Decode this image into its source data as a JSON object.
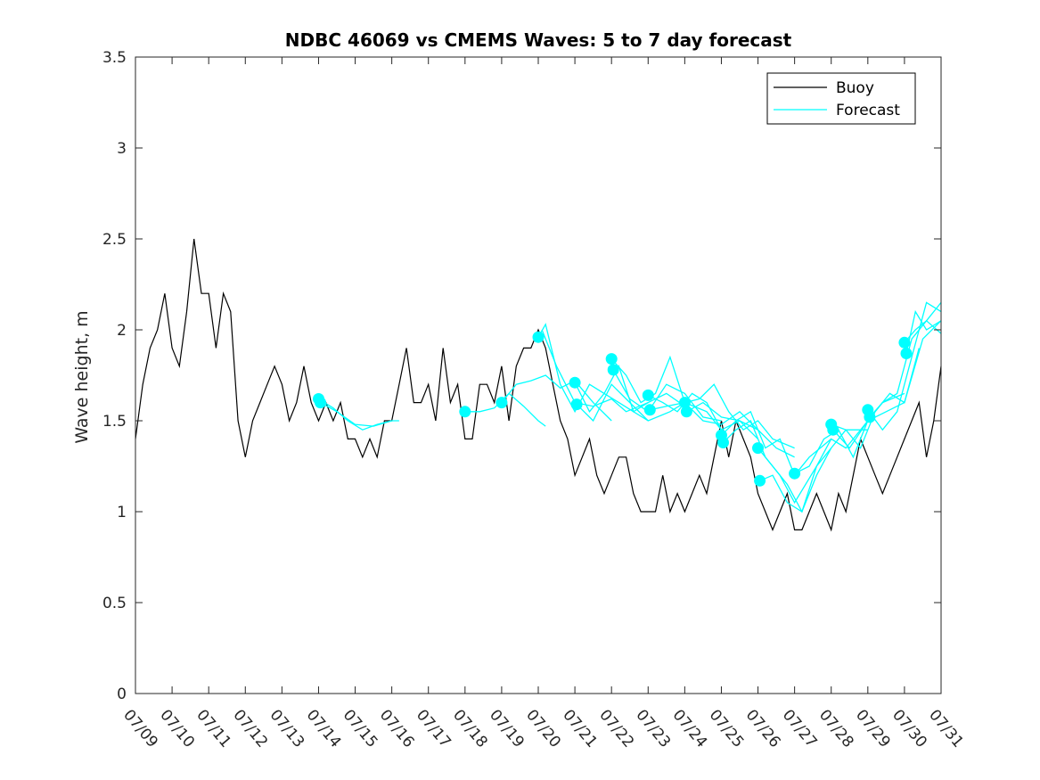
{
  "chart_data": {
    "type": "line",
    "title": "NDBC 46069 vs CMEMS Waves: 5 to 7 day forecast",
    "xlabel": "",
    "ylabel": "Wave height, m",
    "xlim": [
      "07/09",
      "07/31"
    ],
    "ylim": [
      0,
      3.5
    ],
    "x_ticks": [
      "07/09",
      "07/10",
      "07/11",
      "07/12",
      "07/13",
      "07/14",
      "07/15",
      "07/16",
      "07/17",
      "07/18",
      "07/19",
      "07/20",
      "07/21",
      "07/22",
      "07/23",
      "07/24",
      "07/25",
      "07/26",
      "07/27",
      "07/28",
      "07/29",
      "07/30",
      "07/31"
    ],
    "y_ticks": [
      "0",
      "0.5",
      "1",
      "1.5",
      "2",
      "2.5",
      "3",
      "3.5"
    ],
    "grid": false,
    "legend_position": "top-right",
    "colors": {
      "buoy": "#000000",
      "forecast": "#00ffff"
    },
    "legend": [
      {
        "name": "Buoy",
        "color": "#000000"
      },
      {
        "name": "Forecast",
        "color": "#00ffff"
      }
    ],
    "buoy": {
      "name": "Buoy",
      "x_days": [
        0,
        0.2,
        0.4,
        0.6,
        0.8,
        1.0,
        1.2,
        1.4,
        1.6,
        1.8,
        2.0,
        2.2,
        2.4,
        2.6,
        2.8,
        3.0,
        3.2,
        3.4,
        3.6,
        3.8,
        4.0,
        4.2,
        4.4,
        4.6,
        4.8,
        5.0,
        5.2,
        5.4,
        5.6,
        5.8,
        6.0,
        6.2,
        6.4,
        6.6,
        6.8,
        7.0,
        7.2,
        7.4,
        7.6,
        7.8,
        8.0,
        8.2,
        8.4,
        8.6,
        8.8,
        9.0,
        9.2,
        9.4,
        9.6,
        9.8,
        10.0,
        10.2,
        10.4,
        10.6,
        10.8,
        11.0,
        11.2,
        11.4,
        11.6,
        11.8,
        12.0,
        12.2,
        12.4,
        12.6,
        12.8,
        13.0,
        13.2,
        13.4,
        13.6,
        13.8,
        14.0,
        14.2,
        14.4,
        14.6,
        14.8,
        15.0,
        15.2,
        15.4,
        15.6,
        15.8,
        16.0,
        16.2,
        16.4,
        16.6,
        16.8,
        17.0,
        17.2,
        17.4,
        17.6,
        17.8,
        18.0,
        18.2,
        18.4,
        18.6,
        18.8,
        19.0,
        19.2,
        19.4,
        19.6,
        19.8,
        20.0,
        20.2,
        20.4,
        20.6,
        20.8,
        21.0,
        21.2,
        21.4,
        21.6,
        21.8,
        22.0
      ],
      "values": [
        1.4,
        1.7,
        1.9,
        2.0,
        2.2,
        1.9,
        1.8,
        2.1,
        2.5,
        2.2,
        2.2,
        1.9,
        2.2,
        2.1,
        1.5,
        1.3,
        1.5,
        1.6,
        1.7,
        1.8,
        1.7,
        1.5,
        1.6,
        1.8,
        1.6,
        1.5,
        1.6,
        1.5,
        1.6,
        1.4,
        1.4,
        1.3,
        1.4,
        1.3,
        1.5,
        1.5,
        1.7,
        1.9,
        1.6,
        1.6,
        1.7,
        1.5,
        1.9,
        1.6,
        1.7,
        1.4,
        1.4,
        1.7,
        1.7,
        1.6,
        1.8,
        1.5,
        1.8,
        1.9,
        1.9,
        2.0,
        1.9,
        1.7,
        1.5,
        1.4,
        1.2,
        1.3,
        1.4,
        1.2,
        1.1,
        1.2,
        1.3,
        1.3,
        1.1,
        1.0,
        1.0,
        1.0,
        1.2,
        1.0,
        1.1,
        1.0,
        1.1,
        1.2,
        1.1,
        1.3,
        1.5,
        1.3,
        1.5,
        1.4,
        1.3,
        1.1,
        1.0,
        0.9,
        1.0,
        1.1,
        0.9,
        0.9,
        1.0,
        1.1,
        1.0,
        0.9,
        1.1,
        1.0,
        1.2,
        1.4,
        1.3,
        1.2,
        1.1,
        1.2,
        1.3,
        1.4,
        1.5,
        1.6,
        1.3,
        1.5,
        1.8
      ]
    },
    "forecast": [
      {
        "x_days": [
          5.0,
          5.4,
          5.8,
          6.2,
          6.6,
          7.0,
          7.2
        ],
        "values": [
          1.62,
          1.57,
          1.5,
          1.45,
          1.48,
          1.5,
          1.5
        ]
      },
      {
        "x_days": [
          5.05,
          5.5,
          6.0,
          6.5,
          7.0
        ],
        "values": [
          1.6,
          1.55,
          1.48,
          1.47,
          1.5
        ]
      },
      {
        "x_days": [
          9.0,
          9.4,
          9.8,
          10.2,
          10.6,
          11.0,
          11.2
        ],
        "values": [
          1.55,
          1.55,
          1.57,
          1.65,
          1.58,
          1.5,
          1.47
        ]
      },
      {
        "x_days": [
          10.0,
          10.4,
          10.8,
          11.2,
          11.6,
          12.0,
          12.5,
          13.0
        ],
        "values": [
          1.6,
          1.7,
          1.72,
          1.75,
          1.68,
          1.72,
          1.6,
          1.5
        ]
      },
      {
        "x_days": [
          11.0,
          11.2,
          11.6,
          12.0,
          12.4,
          12.8,
          13.2,
          13.6,
          14.0
        ],
        "values": [
          1.96,
          2.03,
          1.7,
          1.55,
          1.7,
          1.65,
          1.6,
          1.55,
          1.5
        ]
      },
      {
        "x_days": [
          11.1,
          11.5,
          12.0,
          12.5,
          13.0,
          13.4,
          14.0
        ],
        "values": [
          2.0,
          1.8,
          1.6,
          1.58,
          1.62,
          1.55,
          1.6
        ]
      },
      {
        "x_days": [
          12.0,
          12.4,
          12.8,
          13.2,
          13.6,
          14.0,
          14.5,
          15.0
        ],
        "values": [
          1.71,
          1.55,
          1.65,
          1.8,
          1.55,
          1.6,
          1.65,
          1.58
        ]
      },
      {
        "x_days": [
          12.05,
          12.5,
          13.0,
          13.4,
          14.0,
          14.6,
          15.0
        ],
        "values": [
          1.59,
          1.5,
          1.7,
          1.62,
          1.5,
          1.55,
          1.6
        ]
      },
      {
        "x_days": [
          13.0,
          13.4,
          13.8,
          14.2,
          14.6,
          15.0,
          15.6,
          16.0
        ],
        "values": [
          1.84,
          1.75,
          1.6,
          1.65,
          1.85,
          1.6,
          1.55,
          1.45
        ]
      },
      {
        "x_days": [
          13.05,
          13.5,
          14.0,
          14.5,
          15.0,
          15.5,
          16.0
        ],
        "values": [
          1.78,
          1.62,
          1.55,
          1.7,
          1.65,
          1.52,
          1.5
        ]
      },
      {
        "x_days": [
          14.0,
          14.4,
          14.8,
          15.2,
          15.6,
          16.0,
          16.5,
          17.0
        ],
        "values": [
          1.64,
          1.6,
          1.55,
          1.65,
          1.6,
          1.45,
          1.5,
          1.4
        ]
      },
      {
        "x_days": [
          14.05,
          14.5,
          15.0,
          15.5,
          16.0,
          16.5,
          17.0
        ],
        "values": [
          1.56,
          1.58,
          1.6,
          1.5,
          1.48,
          1.55,
          1.45
        ]
      },
      {
        "x_days": [
          15.0,
          15.4,
          15.8,
          16.2,
          16.6,
          17.0,
          17.4,
          18.0
        ],
        "values": [
          1.6,
          1.62,
          1.7,
          1.55,
          1.45,
          1.5,
          1.4,
          1.35
        ]
      },
      {
        "x_days": [
          15.05,
          15.5,
          16.0,
          16.5,
          17.0,
          17.5,
          18.0
        ],
        "values": [
          1.55,
          1.6,
          1.52,
          1.5,
          1.45,
          1.35,
          1.3
        ]
      },
      {
        "x_days": [
          16.0,
          16.4,
          16.8,
          17.2,
          17.6,
          18.0,
          18.4,
          19.0
        ],
        "values": [
          1.42,
          1.5,
          1.55,
          1.35,
          1.4,
          1.2,
          1.3,
          1.4
        ]
      },
      {
        "x_days": [
          16.05,
          16.4,
          16.8,
          17.2,
          17.6,
          18.0,
          18.6,
          19.0
        ],
        "values": [
          1.38,
          1.45,
          1.5,
          1.3,
          1.2,
          1.05,
          1.25,
          1.35
        ]
      },
      {
        "x_days": [
          17.0,
          17.4,
          17.8,
          18.2,
          18.6,
          19.0,
          19.4,
          20.0
        ],
        "values": [
          1.35,
          1.25,
          1.15,
          1.0,
          1.2,
          1.35,
          1.45,
          1.45
        ]
      },
      {
        "x_days": [
          17.05,
          17.4,
          17.8,
          18.2,
          18.6,
          19.0,
          19.4,
          20.0
        ],
        "values": [
          1.17,
          1.2,
          1.05,
          1.0,
          1.25,
          1.4,
          1.35,
          1.5
        ]
      },
      {
        "x_days": [
          18.0,
          18.4,
          18.8,
          19.2,
          19.6,
          20.0,
          20.4,
          21.0
        ],
        "values": [
          1.21,
          1.25,
          1.4,
          1.45,
          1.3,
          1.5,
          1.6,
          1.65
        ]
      },
      {
        "x_days": [
          19.0,
          19.4,
          19.8,
          20.2,
          20.6,
          21.0,
          21.4
        ],
        "values": [
          1.48,
          1.45,
          1.35,
          1.55,
          1.65,
          1.6,
          1.9
        ]
      },
      {
        "x_days": [
          19.05,
          19.5,
          20.0,
          20.5,
          21.0,
          21.5,
          22.0
        ],
        "values": [
          1.45,
          1.35,
          1.5,
          1.55,
          1.6,
          1.95,
          2.05
        ]
      },
      {
        "x_days": [
          20.0,
          20.4,
          20.8,
          21.2,
          21.6,
          22.0
        ],
        "values": [
          1.56,
          1.45,
          1.55,
          1.85,
          2.15,
          2.1
        ]
      },
      {
        "x_days": [
          20.05,
          20.4,
          20.8,
          21.2,
          21.6,
          22.0
        ],
        "values": [
          1.52,
          1.6,
          1.65,
          1.95,
          2.05,
          2.15
        ]
      },
      {
        "x_days": [
          21.0,
          21.3,
          21.6,
          22.0
        ],
        "values": [
          1.93,
          2.0,
          2.05,
          1.98
        ]
      },
      {
        "x_days": [
          21.05,
          21.3,
          21.6,
          22.0
        ],
        "values": [
          1.87,
          2.1,
          2.0,
          2.05
        ]
      }
    ],
    "forecast_markers": {
      "x_days": [
        5.0,
        5.05,
        9.0,
        10.0,
        11.0,
        12.0,
        12.05,
        13.0,
        13.05,
        14.0,
        14.05,
        15.0,
        15.05,
        16.0,
        16.05,
        17.0,
        17.05,
        18.0,
        19.0,
        19.05,
        20.0,
        20.05,
        21.0,
        21.05
      ],
      "values": [
        1.62,
        1.6,
        1.55,
        1.6,
        1.96,
        1.71,
        1.59,
        1.84,
        1.78,
        1.64,
        1.56,
        1.6,
        1.55,
        1.42,
        1.38,
        1.35,
        1.17,
        1.21,
        1.48,
        1.45,
        1.56,
        1.52,
        1.93,
        1.87
      ]
    }
  }
}
